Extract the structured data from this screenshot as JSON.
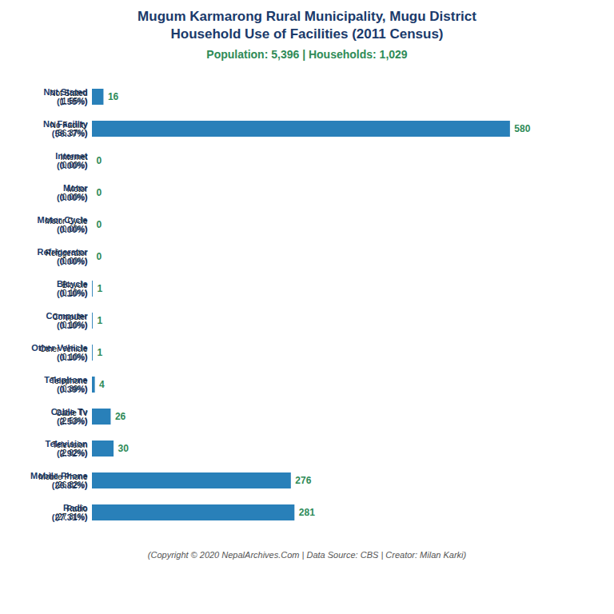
{
  "chart_data": {
    "type": "bar",
    "orientation": "horizontal",
    "title": "Mugum Karmarong Rural Municipality, Mugu District\nHousehold Use of Facilities (2011 Census)",
    "subtitle": "Population: 5,396 | Households: 1,029",
    "annotations": [
      "(Copyright © 2020 NepalArchives.Com | Data Source: CBS | Creator: Milan Karki)"
    ],
    "categories": [
      "Not Stated\n(1.55%)",
      "No Facility\n(56.37%)",
      "Internet\n(0.00%)",
      "Motor\n(0.00%)",
      "Motor Cycle\n(0.00%)",
      "Refrigerator\n(0.00%)",
      "Bicycle\n(0.10%)",
      "Computer\n(0.10%)",
      "Other Vehicle\n(0.10%)",
      "Telephone\n(0.39%)",
      "Cable Tv\n(2.53%)",
      "Television\n(2.92%)",
      "Mobile Phone\n(26.82%)",
      "Radio\n(27.31%)"
    ],
    "values": [
      16,
      580,
      0,
      0,
      0,
      0,
      1,
      1,
      1,
      4,
      26,
      30,
      276,
      281
    ],
    "color": "#2980b9",
    "xlim": [
      0,
      680
    ],
    "data_labels": true,
    "tick_labels": "y",
    "grid": false
  }
}
